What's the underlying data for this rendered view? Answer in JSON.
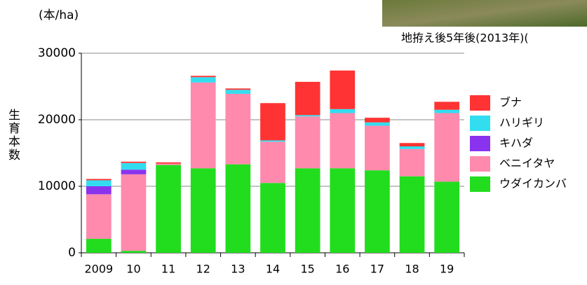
{
  "chart_data": {
    "type": "stacked_bar",
    "unit_label": "(本/ha)",
    "y_label": "生育本数",
    "photo_caption": "地拵え後5年後(2013年)(",
    "categories": [
      "2009",
      "10",
      "11",
      "12",
      "13",
      "14",
      "15",
      "16",
      "17",
      "18",
      "19"
    ],
    "series": [
      {
        "name": "ウダイカンバ",
        "color": "#22dd1e",
        "values": [
          2100,
          300,
          13200,
          12700,
          13300,
          10500,
          12700,
          12700,
          12400,
          11500,
          10700
        ]
      },
      {
        "name": "ベニイタヤ",
        "color": "#ff8aae",
        "values": [
          6700,
          11500,
          200,
          12900,
          10600,
          6200,
          7800,
          8300,
          6700,
          4100,
          10300
        ]
      },
      {
        "name": "キハダ",
        "color": "#8a33ee",
        "values": [
          1200,
          700,
          0,
          0,
          0,
          0,
          0,
          0,
          0,
          0,
          0
        ]
      },
      {
        "name": "ハリギリ",
        "color": "#33ddf0",
        "values": [
          900,
          1000,
          0,
          800,
          600,
          200,
          200,
          600,
          500,
          400,
          500
        ]
      },
      {
        "name": "ブナ",
        "color": "#ff3333",
        "values": [
          200,
          200,
          200,
          200,
          200,
          5600,
          5000,
          5800,
          700,
          500,
          1200
        ]
      }
    ],
    "ylim": [
      0,
      30000
    ],
    "yticks": [
      0,
      10000,
      20000,
      30000
    ],
    "grid": true,
    "legend": "right"
  }
}
